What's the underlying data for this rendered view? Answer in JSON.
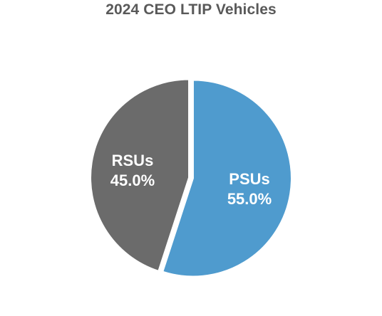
{
  "chart_data": {
    "type": "pie",
    "title": "2024 CEO LTIP Vehicles",
    "start_angle_deg": 0,
    "direction": "clockwise",
    "slices": [
      {
        "label": "PSUs",
        "value": 55.0,
        "value_label": "55.0%",
        "color": "#4f9bce"
      },
      {
        "label": "RSUs",
        "value": 45.0,
        "value_label": "45.0%",
        "color": "#6b6b6b"
      }
    ],
    "legend": "none"
  }
}
